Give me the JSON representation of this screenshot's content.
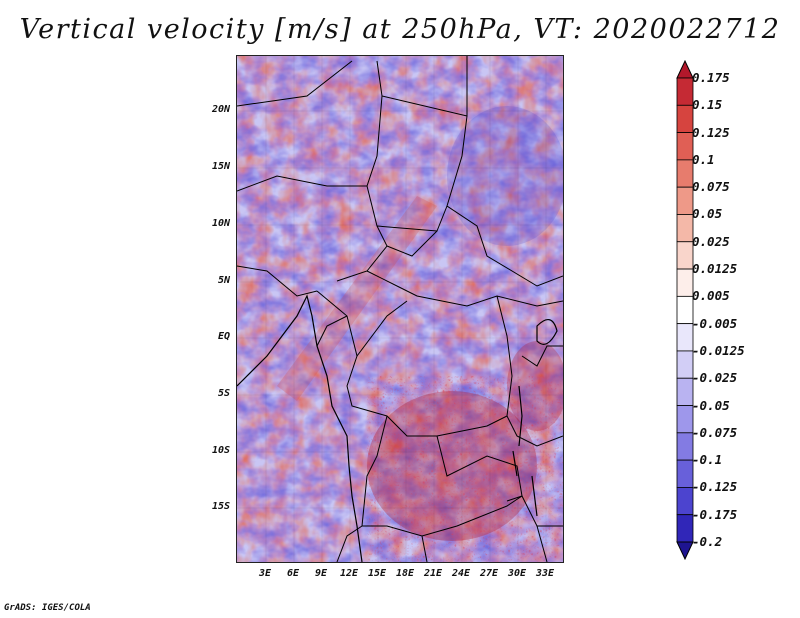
{
  "title": "Vertical velocity [m/s] at 250hPa, VT: 2020022712",
  "credit": "GrADS: IGES/COLA",
  "lat_labels": [
    "20N",
    "15N",
    "10N",
    "5N",
    "EQ",
    "5S",
    "10S",
    "15S"
  ],
  "lon_labels": [
    "3E",
    "6E",
    "9E",
    "12E",
    "15E",
    "18E",
    "21E",
    "24E",
    "27E",
    "30E",
    "33E"
  ],
  "colorbar": {
    "labels": [
      "0.175",
      "0.15",
      "0.125",
      "0.1",
      "0.075",
      "0.05",
      "0.025",
      "0.0125",
      "0.005",
      "-0.005",
      "-0.0125",
      "-0.025",
      "-0.05",
      "-0.075",
      "-0.1",
      "-0.125",
      "-0.175",
      "-0.2"
    ],
    "colors": [
      "#b2182b",
      "#c52a34",
      "#d6443f",
      "#e05f55",
      "#e77c6d",
      "#ee9988",
      "#f4b8a8",
      "#f9d5cb",
      "#fdeeea",
      "#ffffff",
      "#e9e7fb",
      "#d2cef6",
      "#b9b3f1",
      "#9e97eb",
      "#837be3",
      "#6860da",
      "#4c44cf",
      "#3026b8",
      "#1e1490"
    ]
  },
  "colors": {
    "positive": "#c0392b",
    "negative": "#5b55d6",
    "border": "#000000"
  }
}
